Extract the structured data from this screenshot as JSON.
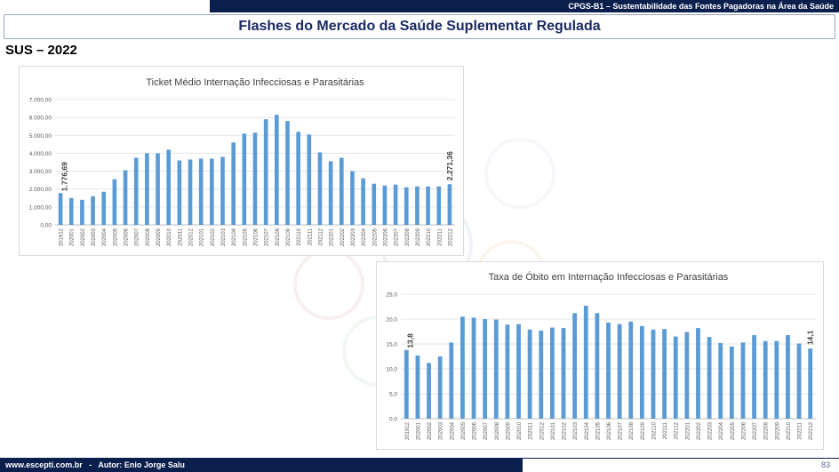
{
  "header": {
    "program": "CPGS-B1 – Sustentabilidade das Fontes Pagadoras na Área da Saúde",
    "title": "Flashes do Mercado da Saúde Suplementar Regulada",
    "section": "SUS – 2022"
  },
  "footer": {
    "text": "www.escepti.com.br   -   Autor: Enio Jorge Salu",
    "page": "83"
  },
  "colors": {
    "bar": "#5b9bd5",
    "brand_dark": "#0b1f4d",
    "title": "#1a2a63"
  },
  "chart_data": [
    {
      "type": "bar",
      "title": "Ticket Médio Internação Infecciosas e Parasitárias",
      "categories": [
        "201912",
        "202001",
        "202002",
        "202003",
        "202004",
        "202005",
        "202006",
        "202007",
        "202008",
        "202009",
        "202010",
        "202011",
        "202012",
        "202101",
        "202102",
        "202103",
        "202104",
        "202105",
        "202106",
        "202107",
        "202108",
        "202109",
        "202110",
        "202111",
        "202112",
        "202201",
        "202202",
        "202203",
        "202204",
        "202205",
        "202206",
        "202207",
        "202208",
        "202209",
        "202210",
        "202211",
        "202212"
      ],
      "values": [
        1776.69,
        1500,
        1400,
        1600,
        1850,
        2550,
        3050,
        3750,
        4000,
        4000,
        4200,
        3600,
        3650,
        3700,
        3700,
        3800,
        4600,
        5100,
        5150,
        5900,
        6150,
        5800,
        5200,
        5050,
        4050,
        3550,
        3750,
        3000,
        2600,
        2300,
        2200,
        2250,
        2100,
        2150,
        2150,
        2150,
        2271.36
      ],
      "yticks": [
        "0,00",
        "1.000,00",
        "2.000,00",
        "3.000,00",
        "4.000,00",
        "5.000,00",
        "6.000,00",
        "7.000,00"
      ],
      "ylim": [
        0,
        7000
      ],
      "labels": {
        "first": "1.776,69",
        "last": "2.271,36"
      }
    },
    {
      "type": "bar",
      "title": "Taxa de Óbito em Internação Infecciosas e Parasitárias",
      "categories": [
        "201912",
        "202001",
        "202002",
        "202003",
        "202004",
        "202005",
        "202006",
        "202007",
        "202008",
        "202009",
        "202010",
        "202011",
        "202012",
        "202101",
        "202102",
        "202103",
        "202104",
        "202105",
        "202106",
        "202107",
        "202108",
        "202109",
        "202110",
        "202111",
        "202112",
        "202201",
        "202202",
        "202203",
        "202204",
        "202205",
        "202206",
        "202207",
        "202208",
        "202209",
        "202210",
        "202211",
        "202212"
      ],
      "values": [
        13.8,
        12.7,
        11.2,
        12.5,
        15.3,
        20.5,
        20.3,
        20.0,
        19.9,
        18.9,
        19.0,
        17.9,
        17.7,
        18.3,
        18.2,
        21.2,
        22.7,
        21.2,
        19.3,
        19.0,
        19.5,
        18.6,
        17.9,
        18.0,
        16.5,
        17.4,
        18.2,
        16.4,
        15.2,
        14.5,
        15.3,
        16.8,
        15.6,
        15.6,
        16.8,
        15.1,
        14.1
      ],
      "yticks": [
        "0,0",
        "5,0",
        "10,0",
        "15,0",
        "20,0",
        "25,0"
      ],
      "ylim": [
        0,
        25
      ],
      "labels": {
        "first": "13,8",
        "last": "14,1"
      }
    }
  ]
}
